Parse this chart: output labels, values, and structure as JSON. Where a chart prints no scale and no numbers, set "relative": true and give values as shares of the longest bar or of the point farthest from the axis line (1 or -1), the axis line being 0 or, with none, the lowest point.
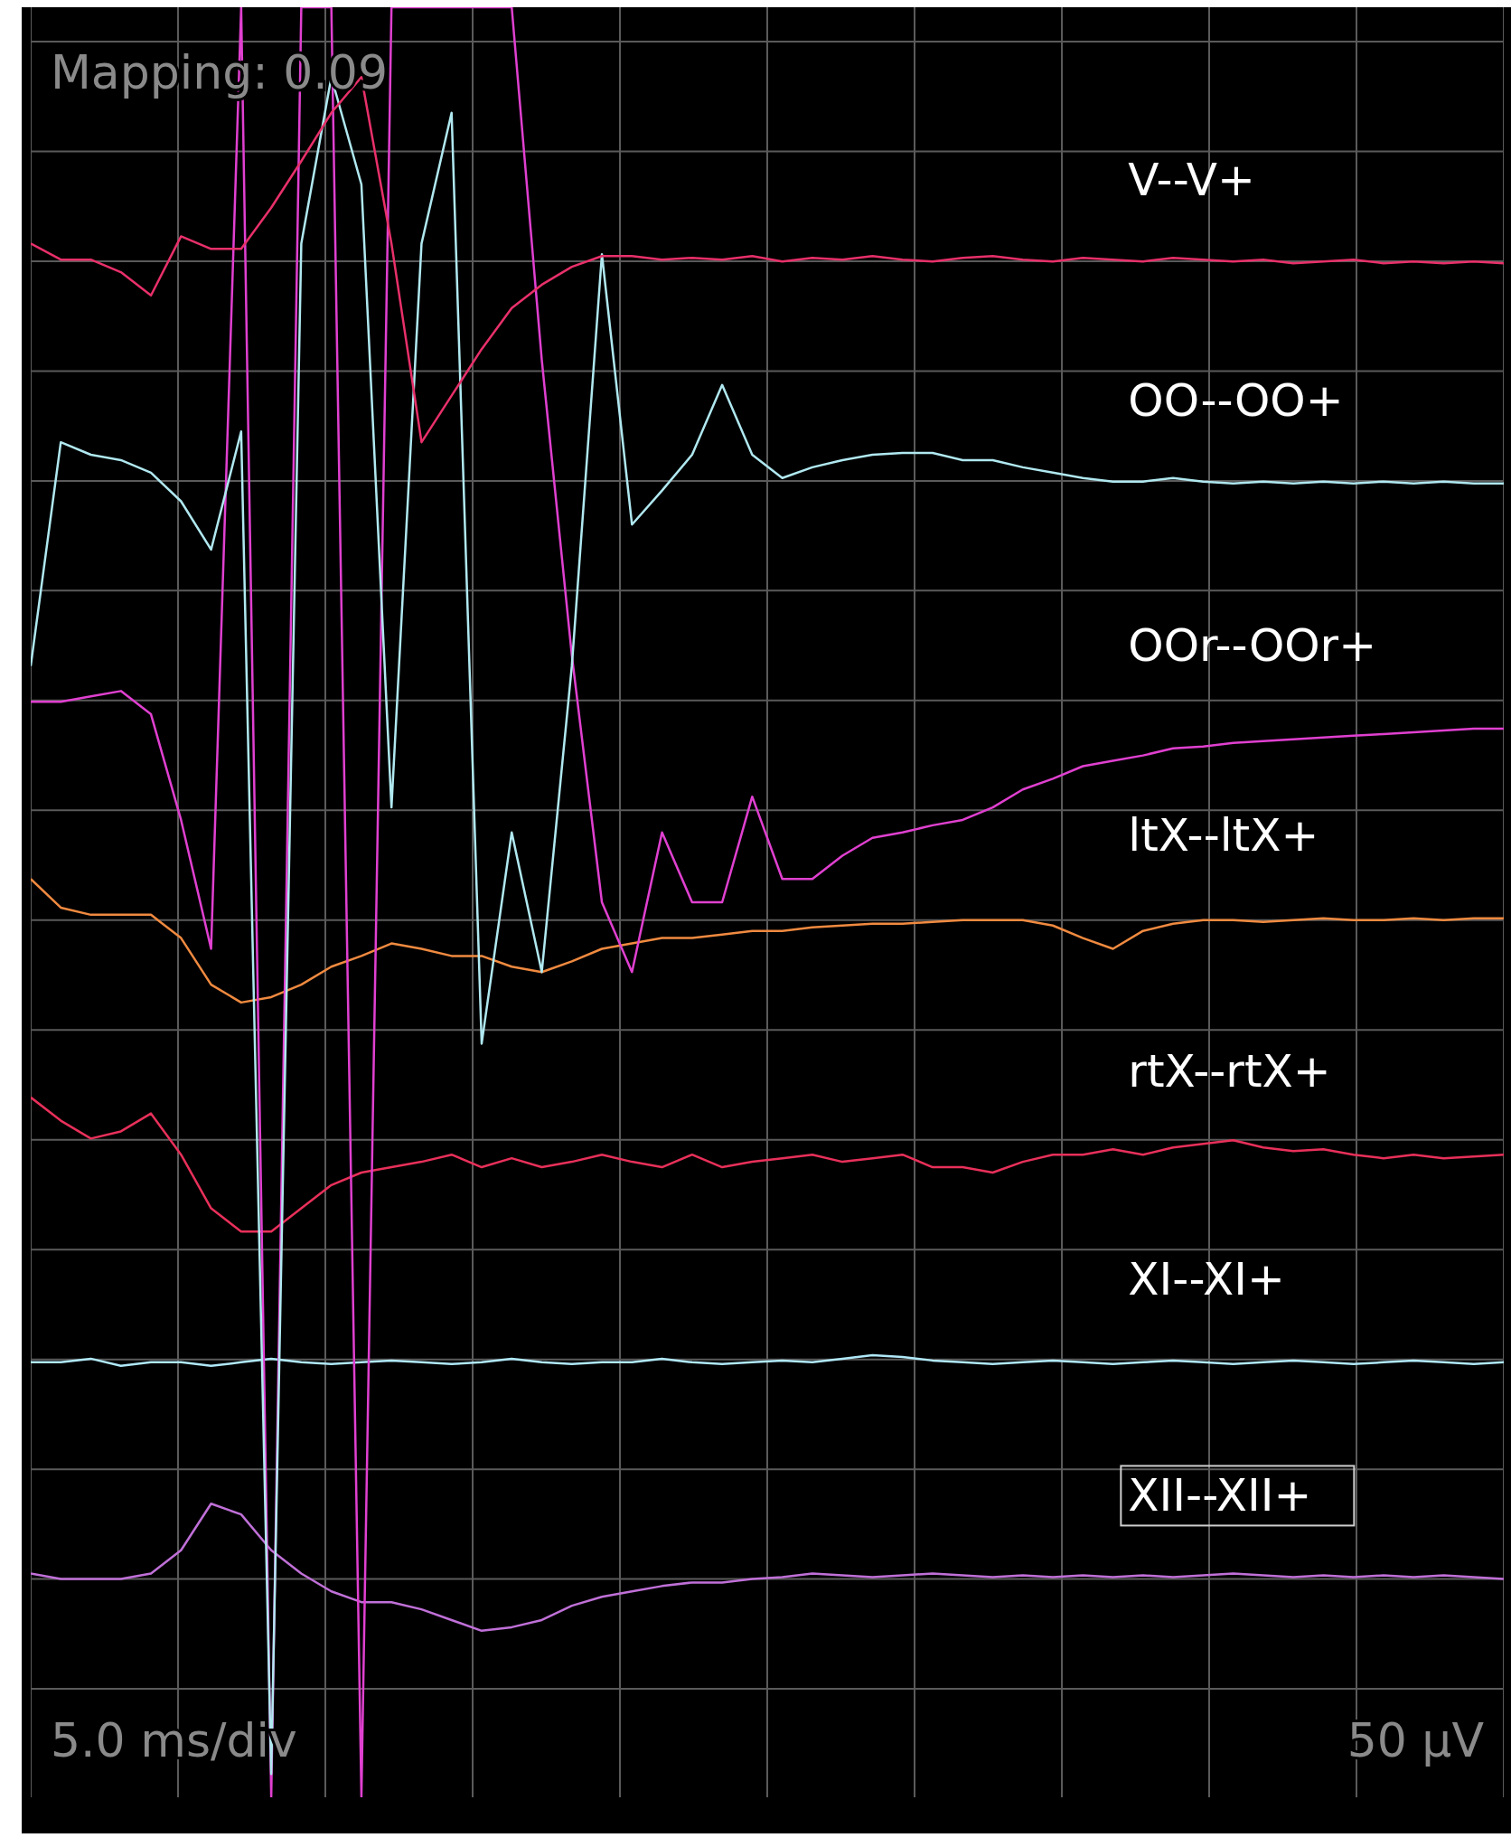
{
  "chart_data": {
    "type": "line",
    "relative": true,
    "grid": true,
    "tick_labels": false,
    "categories": [
      null,
      null,
      null,
      null,
      null,
      null,
      null,
      null,
      null,
      null,
      null,
      null,
      null,
      null,
      null,
      null,
      null,
      null,
      null,
      null,
      null,
      null,
      null,
      null,
      null,
      null,
      null,
      null,
      null,
      null,
      null,
      null,
      null,
      null,
      null,
      null,
      null,
      null,
      null,
      null,
      null,
      null,
      null,
      null,
      null,
      null,
      null,
      null,
      null,
      null
    ],
    "annotations": [
      "Mapping: 0.09",
      "5.0 ms/div",
      "50 µV"
    ],
    "series": [
      {
        "name": "V--V+",
        "color": "#e8306a",
        "values": [
          0.868,
          0.859,
          0.859,
          0.852,
          0.839,
          0.872,
          0.865,
          0.865,
          0.888,
          0.914,
          0.941,
          0.961,
          0.868,
          0.757,
          0.783,
          0.809,
          0.832,
          0.845,
          0.855,
          0.861,
          0.861,
          0.859,
          0.86,
          0.859,
          0.861,
          0.858,
          0.86,
          0.859,
          0.861,
          0.859,
          0.858,
          0.86,
          0.861,
          0.859,
          0.858,
          0.86,
          0.859,
          0.858,
          0.86,
          0.859,
          0.858,
          0.859,
          0.857,
          0.858,
          0.859,
          0.857,
          0.858,
          0.857,
          0.858,
          0.857
        ]
      },
      {
        "name": "OO--OO+",
        "color": "#b0e8f0",
        "values": [
          0.632,
          0.757,
          0.75,
          0.747,
          0.74,
          0.724,
          0.697,
          0.763,
          0.013,
          0.868,
          0.961,
          0.901,
          0.553,
          0.868,
          0.941,
          0.421,
          0.539,
          0.461,
          0.632,
          0.862,
          0.711,
          0.73,
          0.75,
          0.789,
          0.75,
          0.737,
          0.743,
          0.747,
          0.75,
          0.751,
          0.751,
          0.747,
          0.747,
          0.743,
          0.74,
          0.737,
          0.735,
          0.735,
          0.737,
          0.735,
          0.734,
          0.735,
          0.734,
          0.735,
          0.734,
          0.735,
          0.734,
          0.735,
          0.734,
          0.734
        ]
      },
      {
        "name": "OOr--OOr+",
        "color": "#e040d0",
        "values": [
          0.612,
          0.612,
          0.615,
          0.618,
          0.605,
          0.546,
          0.474,
          1,
          0,
          1,
          1,
          0,
          1,
          1,
          1,
          1,
          1,
          0.803,
          0.638,
          0.5,
          0.461,
          0.539,
          0.5,
          0.5,
          0.559,
          0.513,
          0.513,
          0.526,
          0.536,
          0.539,
          0.543,
          0.546,
          0.553,
          0.563,
          0.569,
          0.576,
          0.579,
          0.582,
          0.586,
          0.587,
          0.589,
          0.59,
          0.591,
          0.592,
          0.593,
          0.594,
          0.595,
          0.596,
          0.597,
          0.597
        ]
      },
      {
        "name": "ltX--ltX+",
        "color": "#f08a40",
        "values": [
          0.513,
          0.497,
          0.493,
          0.493,
          0.493,
          0.48,
          0.454,
          0.444,
          0.447,
          0.454,
          0.464,
          0.47,
          0.477,
          0.474,
          0.47,
          0.47,
          0.464,
          0.461,
          0.467,
          0.474,
          0.477,
          0.48,
          0.48,
          0.482,
          0.484,
          0.484,
          0.486,
          0.487,
          0.488,
          0.488,
          0.489,
          0.49,
          0.49,
          0.49,
          0.487,
          0.48,
          0.474,
          0.484,
          0.488,
          0.49,
          0.49,
          0.489,
          0.49,
          0.491,
          0.49,
          0.49,
          0.491,
          0.49,
          0.491,
          0.491
        ]
      },
      {
        "name": "rtX--rtX+",
        "color": "#e8305a",
        "values": [
          0.391,
          0.378,
          0.368,
          0.372,
          0.382,
          0.359,
          0.329,
          0.316,
          0.316,
          0.329,
          0.342,
          0.349,
          0.352,
          0.355,
          0.359,
          0.352,
          0.357,
          0.352,
          0.355,
          0.359,
          0.355,
          0.352,
          0.359,
          0.352,
          0.355,
          0.357,
          0.359,
          0.355,
          0.357,
          0.359,
          0.352,
          0.352,
          0.349,
          0.355,
          0.359,
          0.359,
          0.362,
          0.359,
          0.363,
          0.365,
          0.367,
          0.363,
          0.361,
          0.362,
          0.359,
          0.357,
          0.359,
          0.357,
          0.358,
          0.359
        ]
      },
      {
        "name": "XI--XI+",
        "color": "#b0e8f8",
        "values": [
          0.243,
          0.243,
          0.245,
          0.241,
          0.243,
          0.243,
          0.241,
          0.243,
          0.245,
          0.243,
          0.242,
          0.243,
          0.244,
          0.243,
          0.242,
          0.243,
          0.245,
          0.243,
          0.242,
          0.243,
          0.243,
          0.245,
          0.243,
          0.242,
          0.243,
          0.244,
          0.243,
          0.245,
          0.247,
          0.246,
          0.244,
          0.243,
          0.242,
          0.243,
          0.244,
          0.243,
          0.242,
          0.243,
          0.244,
          0.243,
          0.242,
          0.243,
          0.244,
          0.243,
          0.242,
          0.243,
          0.244,
          0.243,
          0.242,
          0.243
        ]
      },
      {
        "name": "XII--XII+",
        "color": "#c070d8",
        "values": [
          0.125,
          0.122,
          0.122,
          0.122,
          0.125,
          0.138,
          0.164,
          0.158,
          0.138,
          0.125,
          0.115,
          0.109,
          0.109,
          0.105,
          0.099,
          0.093,
          0.095,
          0.099,
          0.107,
          0.112,
          0.115,
          0.118,
          0.12,
          0.12,
          0.122,
          0.123,
          0.125,
          0.124,
          0.123,
          0.124,
          0.125,
          0.124,
          0.123,
          0.124,
          0.123,
          0.124,
          0.123,
          0.124,
          0.123,
          0.124,
          0.125,
          0.124,
          0.123,
          0.124,
          0.123,
          0.124,
          0.123,
          0.124,
          0.123,
          0.122
        ]
      }
    ]
  }
}
